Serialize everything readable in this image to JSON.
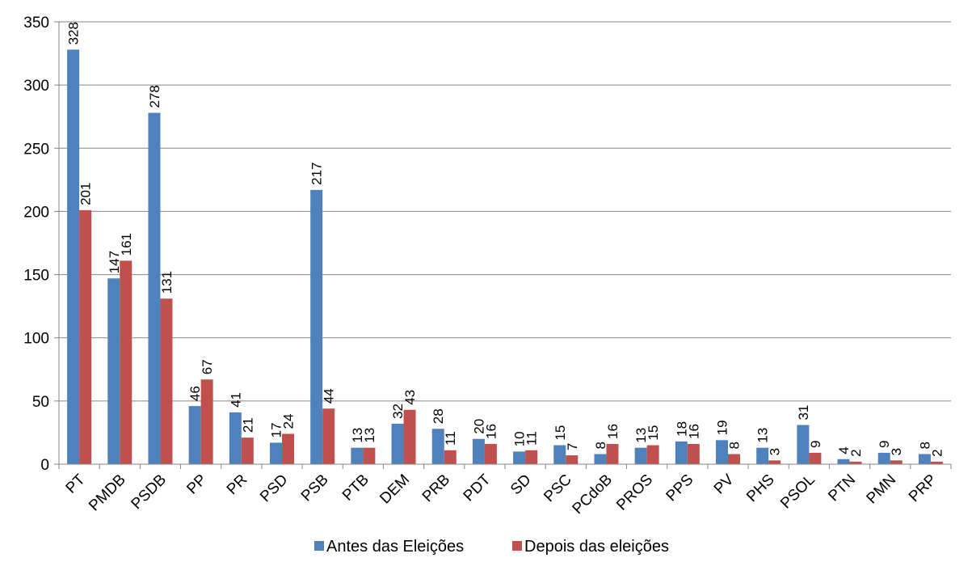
{
  "chart_data": {
    "type": "bar",
    "title": "",
    "xlabel": "",
    "ylabel": "",
    "ylim": [
      0,
      350
    ],
    "yticks": [
      0,
      50,
      100,
      150,
      200,
      250,
      300,
      350
    ],
    "grid": true,
    "legend_position": "bottom",
    "categories": [
      "PT",
      "PMDB",
      "PSDB",
      "PP",
      "PR",
      "PSD",
      "PSB",
      "PTB",
      "DEM",
      "PRB",
      "PDT",
      "SD",
      "PSC",
      "PCdoB",
      "PROS",
      "PPS",
      "PV",
      "PHS",
      "PSOL",
      "PTN",
      "PMN",
      "PRP"
    ],
    "series": [
      {
        "name": "Antes das Eleições",
        "color": "#4F81BD",
        "values": [
          328,
          147,
          278,
          46,
          41,
          17,
          217,
          13,
          32,
          28,
          20,
          10,
          15,
          8,
          13,
          18,
          19,
          13,
          31,
          4,
          9,
          8
        ]
      },
      {
        "name": "Depois das eleições",
        "color": "#C0504D",
        "values": [
          201,
          161,
          131,
          67,
          21,
          24,
          44,
          13,
          43,
          11,
          16,
          11,
          7,
          16,
          15,
          16,
          8,
          3,
          9,
          2,
          3,
          2
        ]
      }
    ]
  }
}
